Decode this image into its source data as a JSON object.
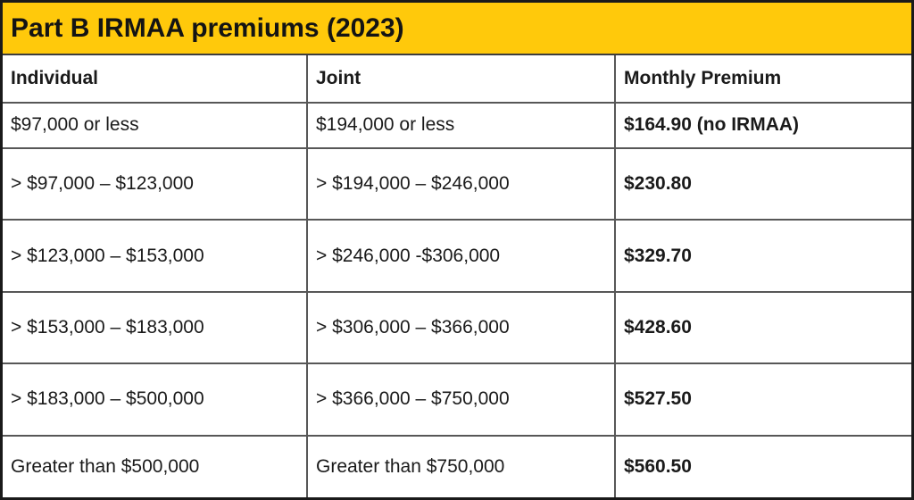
{
  "title": "Part B IRMAA premiums (2023)",
  "colors": {
    "header_bg": "#FFC90B",
    "outer_border": "#1A1A1A",
    "grid_line": "#575757",
    "text": "#1A1A1A"
  },
  "table": {
    "columns": [
      "Individual",
      "Joint",
      "Monthly Premium"
    ],
    "rows": [
      {
        "individual": "$97,000 or less",
        "joint": "$194,000 or less",
        "premium": "$164.90 (no IRMAA)"
      },
      {
        "individual": "> $97,000 – $123,000",
        "joint": "> $194,000 – $246,000",
        "premium": "$230.80"
      },
      {
        "individual": "> $123,000 – $153,000",
        "joint": "> $246,000 -$306,000",
        "premium": "$329.70"
      },
      {
        "individual": "> $153,000 – $183,000",
        "joint": "> $306,000 – $366,000",
        "premium": "$428.60"
      },
      {
        "individual": "> $183,000 – $500,000",
        "joint": "> $366,000 – $750,000",
        "premium": "$527.50"
      },
      {
        "individual": "Greater than $500,000",
        "joint": "Greater than $750,000",
        "premium": "$560.50"
      }
    ]
  }
}
